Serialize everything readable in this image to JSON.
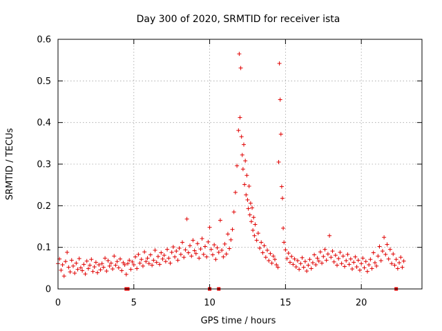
{
  "chart_data": {
    "type": "scatter",
    "title": "Day 300 of 2020, SRMTID for receiver ista",
    "xlabel": "GPS time / hours",
    "ylabel": "SRMTID / TECUs",
    "xlim": [
      0,
      24
    ],
    "ylim": [
      0,
      0.6
    ],
    "x_ticks": [
      0,
      5,
      10,
      15,
      20
    ],
    "x_tick_labels": [
      "0",
      "5",
      "10",
      "15",
      "20"
    ],
    "y_ticks": [
      0,
      0.1,
      0.2,
      0.3,
      0.4,
      0.5,
      0.6
    ],
    "y_tick_labels": [
      "0",
      "0.1",
      "0.2",
      "0.3",
      "0.4",
      "0.5",
      "0.6"
    ],
    "grid": true,
    "marker": "+",
    "color": "#e00000",
    "series": [
      {
        "name": "SRMTID",
        "points": [
          [
            0.0,
            0.061
          ],
          [
            0.1,
            0.072
          ],
          [
            0.2,
            0.045
          ],
          [
            0.3,
            0.058
          ],
          [
            0.4,
            0.031
          ],
          [
            0.5,
            0.066
          ],
          [
            0.6,
            0.088
          ],
          [
            0.7,
            0.052
          ],
          [
            0.8,
            0.041
          ],
          [
            0.9,
            0.069
          ],
          [
            1.0,
            0.055
          ],
          [
            1.1,
            0.038
          ],
          [
            1.2,
            0.062
          ],
          [
            1.3,
            0.047
          ],
          [
            1.4,
            0.073
          ],
          [
            1.5,
            0.051
          ],
          [
            1.6,
            0.044
          ],
          [
            1.7,
            0.059
          ],
          [
            1.8,
            0.036
          ],
          [
            1.9,
            0.067
          ],
          [
            2.0,
            0.049
          ],
          [
            2.1,
            0.057
          ],
          [
            2.2,
            0.071
          ],
          [
            2.3,
            0.042
          ],
          [
            2.4,
            0.053
          ],
          [
            2.5,
            0.064
          ],
          [
            2.6,
            0.039
          ],
          [
            2.7,
            0.058
          ],
          [
            2.8,
            0.046
          ],
          [
            2.9,
            0.061
          ],
          [
            3.0,
            0.052
          ],
          [
            3.1,
            0.074
          ],
          [
            3.2,
            0.043
          ],
          [
            3.3,
            0.068
          ],
          [
            3.4,
            0.055
          ],
          [
            3.5,
            0.062
          ],
          [
            3.6,
            0.048
          ],
          [
            3.7,
            0.079
          ],
          [
            3.8,
            0.057
          ],
          [
            3.9,
            0.066
          ],
          [
            4.0,
            0.051
          ],
          [
            4.1,
            0.072
          ],
          [
            4.2,
            0.044
          ],
          [
            4.3,
            0.063
          ],
          [
            4.4,
            0.058
          ],
          [
            4.5,
            0.035
          ],
          [
            4.6,
            0.061
          ],
          [
            4.7,
            0.069
          ],
          [
            4.8,
            0.047
          ],
          [
            4.9,
            0.065
          ],
          [
            5.0,
            0.058
          ],
          [
            5.1,
            0.077
          ],
          [
            5.2,
            0.049
          ],
          [
            5.3,
            0.083
          ],
          [
            5.4,
            0.062
          ],
          [
            5.5,
            0.071
          ],
          [
            5.6,
            0.055
          ],
          [
            5.7,
            0.089
          ],
          [
            5.8,
            0.066
          ],
          [
            5.9,
            0.074
          ],
          [
            6.0,
            0.061
          ],
          [
            6.1,
            0.082
          ],
          [
            6.2,
            0.057
          ],
          [
            6.3,
            0.069
          ],
          [
            6.4,
            0.093
          ],
          [
            6.5,
            0.064
          ],
          [
            6.6,
            0.078
          ],
          [
            6.7,
            0.059
          ],
          [
            6.8,
            0.087
          ],
          [
            6.9,
            0.072
          ],
          [
            7.0,
            0.081
          ],
          [
            7.1,
            0.066
          ],
          [
            7.2,
            0.095
          ],
          [
            7.3,
            0.074
          ],
          [
            7.4,
            0.062
          ],
          [
            7.5,
            0.088
          ],
          [
            7.6,
            0.101
          ],
          [
            7.7,
            0.077
          ],
          [
            7.8,
            0.091
          ],
          [
            7.9,
            0.069
          ],
          [
            8.0,
            0.098
          ],
          [
            8.1,
            0.083
          ],
          [
            8.2,
            0.112
          ],
          [
            8.3,
            0.076
          ],
          [
            8.4,
            0.094
          ],
          [
            8.5,
            0.168
          ],
          [
            8.6,
            0.087
          ],
          [
            8.7,
            0.104
          ],
          [
            8.8,
            0.079
          ],
          [
            8.9,
            0.117
          ],
          [
            9.0,
            0.092
          ],
          [
            9.1,
            0.085
          ],
          [
            9.2,
            0.109
          ],
          [
            9.3,
            0.074
          ],
          [
            9.4,
            0.096
          ],
          [
            9.5,
            0.121
          ],
          [
            9.6,
            0.083
          ],
          [
            9.7,
            0.102
          ],
          [
            9.8,
            0.077
          ],
          [
            9.9,
            0.113
          ],
          [
            10.0,
            0.148
          ],
          [
            10.1,
            0.095
          ],
          [
            10.2,
            0.082
          ],
          [
            10.3,
            0.106
          ],
          [
            10.4,
            0.071
          ],
          [
            10.5,
            0.099
          ],
          [
            10.6,
            0.088
          ],
          [
            10.7,
            0.165
          ],
          [
            10.8,
            0.093
          ],
          [
            10.9,
            0.077
          ],
          [
            11.0,
            0.108
          ],
          [
            11.1,
            0.084
          ],
          [
            11.2,
            0.132
          ],
          [
            11.3,
            0.097
          ],
          [
            11.4,
            0.118
          ],
          [
            11.5,
            0.143
          ],
          [
            11.6,
            0.185
          ],
          [
            11.7,
            0.232
          ],
          [
            11.8,
            0.296
          ],
          [
            11.9,
            0.381
          ],
          [
            11.95,
            0.565
          ],
          [
            12.0,
            0.412
          ],
          [
            12.05,
            0.531
          ],
          [
            12.1,
            0.366
          ],
          [
            12.15,
            0.322
          ],
          [
            12.2,
            0.288
          ],
          [
            12.25,
            0.347
          ],
          [
            12.3,
            0.251
          ],
          [
            12.35,
            0.308
          ],
          [
            12.4,
            0.226
          ],
          [
            12.45,
            0.273
          ],
          [
            12.5,
            0.214
          ],
          [
            12.55,
            0.193
          ],
          [
            12.6,
            0.247
          ],
          [
            12.65,
            0.178
          ],
          [
            12.7,
            0.206
          ],
          [
            12.75,
            0.162
          ],
          [
            12.8,
            0.195
          ],
          [
            12.85,
            0.141
          ],
          [
            12.9,
            0.172
          ],
          [
            12.95,
            0.128
          ],
          [
            13.0,
            0.155
          ],
          [
            13.1,
            0.117
          ],
          [
            13.2,
            0.134
          ],
          [
            13.3,
            0.098
          ],
          [
            13.4,
            0.112
          ],
          [
            13.5,
            0.087
          ],
          [
            13.6,
            0.104
          ],
          [
            13.7,
            0.076
          ],
          [
            13.8,
            0.093
          ],
          [
            13.9,
            0.068
          ],
          [
            14.0,
            0.085
          ],
          [
            14.1,
            0.062
          ],
          [
            14.2,
            0.079
          ],
          [
            14.3,
            0.071
          ],
          [
            14.4,
            0.058
          ],
          [
            14.5,
            0.052
          ],
          [
            14.55,
            0.305
          ],
          [
            14.6,
            0.542
          ],
          [
            14.65,
            0.455
          ],
          [
            14.7,
            0.372
          ],
          [
            14.75,
            0.246
          ],
          [
            14.8,
            0.218
          ],
          [
            14.85,
            0.146
          ],
          [
            14.9,
            0.112
          ],
          [
            15.0,
            0.094
          ],
          [
            15.1,
            0.073
          ],
          [
            15.2,
            0.086
          ],
          [
            15.3,
            0.064
          ],
          [
            15.4,
            0.078
          ],
          [
            15.5,
            0.059
          ],
          [
            15.6,
            0.072
          ],
          [
            15.7,
            0.053
          ],
          [
            15.8,
            0.068
          ],
          [
            15.9,
            0.047
          ],
          [
            16.0,
            0.061
          ],
          [
            16.1,
            0.075
          ],
          [
            16.2,
            0.052
          ],
          [
            16.3,
            0.066
          ],
          [
            16.4,
            0.043
          ],
          [
            16.5,
            0.057
          ],
          [
            16.6,
            0.071
          ],
          [
            16.7,
            0.049
          ],
          [
            16.8,
            0.063
          ],
          [
            16.9,
            0.082
          ],
          [
            17.0,
            0.058
          ],
          [
            17.1,
            0.074
          ],
          [
            17.2,
            0.067
          ],
          [
            17.3,
            0.089
          ],
          [
            17.4,
            0.062
          ],
          [
            17.5,
            0.078
          ],
          [
            17.6,
            0.095
          ],
          [
            17.7,
            0.069
          ],
          [
            17.8,
            0.084
          ],
          [
            17.9,
            0.128
          ],
          [
            18.0,
            0.076
          ],
          [
            18.1,
            0.091
          ],
          [
            18.2,
            0.065
          ],
          [
            18.3,
            0.081
          ],
          [
            18.4,
            0.057
          ],
          [
            18.5,
            0.073
          ],
          [
            18.6,
            0.088
          ],
          [
            18.7,
            0.061
          ],
          [
            18.8,
            0.079
          ],
          [
            18.9,
            0.054
          ],
          [
            19.0,
            0.068
          ],
          [
            19.1,
            0.083
          ],
          [
            19.2,
            0.059
          ],
          [
            19.3,
            0.072
          ],
          [
            19.4,
            0.048
          ],
          [
            19.5,
            0.064
          ],
          [
            19.6,
            0.077
          ],
          [
            19.7,
            0.053
          ],
          [
            19.8,
            0.069
          ],
          [
            19.9,
            0.045
          ],
          [
            20.0,
            0.061
          ],
          [
            20.1,
            0.074
          ],
          [
            20.2,
            0.051
          ],
          [
            20.3,
            0.066
          ],
          [
            20.4,
            0.042
          ],
          [
            20.5,
            0.058
          ],
          [
            20.6,
            0.071
          ],
          [
            20.7,
            0.049
          ],
          [
            20.8,
            0.087
          ],
          [
            20.9,
            0.063
          ],
          [
            21.0,
            0.055
          ],
          [
            21.1,
            0.079
          ],
          [
            21.2,
            0.102
          ],
          [
            21.3,
            0.068
          ],
          [
            21.4,
            0.091
          ],
          [
            21.5,
            0.124
          ],
          [
            21.6,
            0.083
          ],
          [
            21.7,
            0.107
          ],
          [
            21.8,
            0.072
          ],
          [
            21.9,
            0.095
          ],
          [
            22.0,
            0.061
          ],
          [
            22.1,
            0.084
          ],
          [
            22.2,
            0.057
          ],
          [
            22.3,
            0.071
          ],
          [
            22.4,
            0.049
          ],
          [
            22.5,
            0.063
          ],
          [
            22.6,
            0.076
          ],
          [
            22.7,
            0.052
          ],
          [
            22.8,
            0.067
          ]
        ]
      }
    ],
    "zero_markers_x": [
      4.5,
      4.6,
      10.0,
      10.6,
      22.3
    ]
  }
}
